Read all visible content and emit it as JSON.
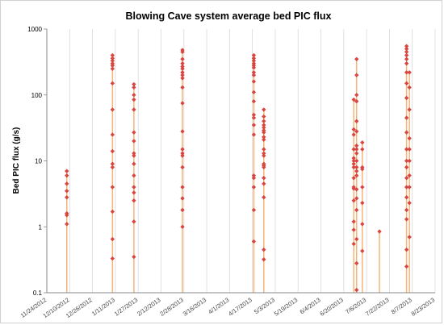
{
  "chart_data": {
    "type": "scatter",
    "title": "Blowing Cave system average bed PIC flux",
    "xlabel": "",
    "ylabel": "Bed PIC flux (g/s)",
    "y_scale": "log",
    "ylim": [
      0.1,
      1000
    ],
    "y_ticks": [
      "0.1",
      "1",
      "10",
      "100",
      "1000"
    ],
    "x_ticks": [
      "11/24/2012",
      "12/10/2012",
      "12/26/2012",
      "1/11/2013",
      "1/27/2013",
      "2/12/2013",
      "2/28/2013",
      "3/16/2013",
      "4/1/2013",
      "4/17/2013",
      "5/3/2013",
      "5/19/2013",
      "6/4/2013",
      "6/20/2013",
      "7/6/2013",
      "7/22/2013",
      "8/7/2013",
      "8/23/2013"
    ],
    "xlim": [
      "11/24/2012",
      "8/23/2013"
    ],
    "grid": "vertical",
    "marker_color": "#d9453f",
    "stem_color": "#f5b47a",
    "events": [
      {
        "date": "12/8/2012",
        "values": [
          7,
          6,
          4.5,
          3.5,
          2.8,
          1.6,
          1.5,
          1.1
        ]
      },
      {
        "date": "1/9/2013",
        "values": [
          400,
          360,
          330,
          300,
          280,
          250,
          150,
          60,
          25,
          14,
          9,
          8,
          4,
          1.7,
          0.65,
          0.33
        ]
      },
      {
        "date": "1/24/2013",
        "values": [
          145,
          130,
          100,
          85,
          60,
          27,
          20,
          13,
          12,
          9,
          6,
          4,
          3.3,
          2.5,
          1.2,
          0.35
        ]
      },
      {
        "date": "2/27/2013",
        "values": [
          480,
          450,
          350,
          300,
          270,
          250,
          220,
          200,
          180,
          130,
          75,
          28,
          15,
          13,
          12,
          8,
          4,
          2.7,
          1.8,
          1
        ]
      },
      {
        "date": "4/18/2013",
        "values": [
          400,
          360,
          330,
          300,
          280,
          260,
          220,
          200,
          160,
          110,
          80,
          50,
          45,
          35,
          25,
          6,
          5.5,
          4,
          1.8,
          0.6
        ]
      },
      {
        "date": "4/25/2013",
        "values": [
          60,
          47,
          40,
          35,
          32,
          29,
          27,
          23,
          21,
          15,
          13,
          12,
          9,
          8.5,
          8,
          5.5,
          4.5,
          2.8,
          0.45,
          0.32
        ]
      },
      {
        "date": "6/27/2013",
        "values": [
          85,
          30,
          25,
          15,
          11,
          10,
          9,
          8,
          5.5,
          4,
          3.8,
          2.5,
          1.2,
          0.9,
          0.55
        ]
      },
      {
        "date": "6/29/2013",
        "values": [
          350,
          200,
          100,
          80,
          40,
          28,
          17,
          15,
          13,
          10,
          8,
          7,
          6,
          3.7,
          2.7,
          1.8,
          0.65,
          0.28,
          0.11
        ]
      },
      {
        "date": "7/3/2013",
        "values": [
          19,
          15,
          8,
          7.5,
          4,
          2.3,
          1.1,
          0.43
        ]
      },
      {
        "date": "7/15/2013",
        "values": [
          0.85
        ]
      },
      {
        "date": "8/3/2013",
        "values": [
          550,
          500,
          450,
          400,
          350,
          300,
          220,
          150,
          90,
          45,
          27,
          15,
          10,
          8,
          5.5,
          4,
          2.8,
          1.8,
          1.3,
          0.45,
          0.25
        ]
      },
      {
        "date": "8/5/2013",
        "values": [
          220,
          130,
          60,
          22,
          15,
          10,
          6,
          4,
          2.3,
          0.7
        ]
      }
    ]
  }
}
